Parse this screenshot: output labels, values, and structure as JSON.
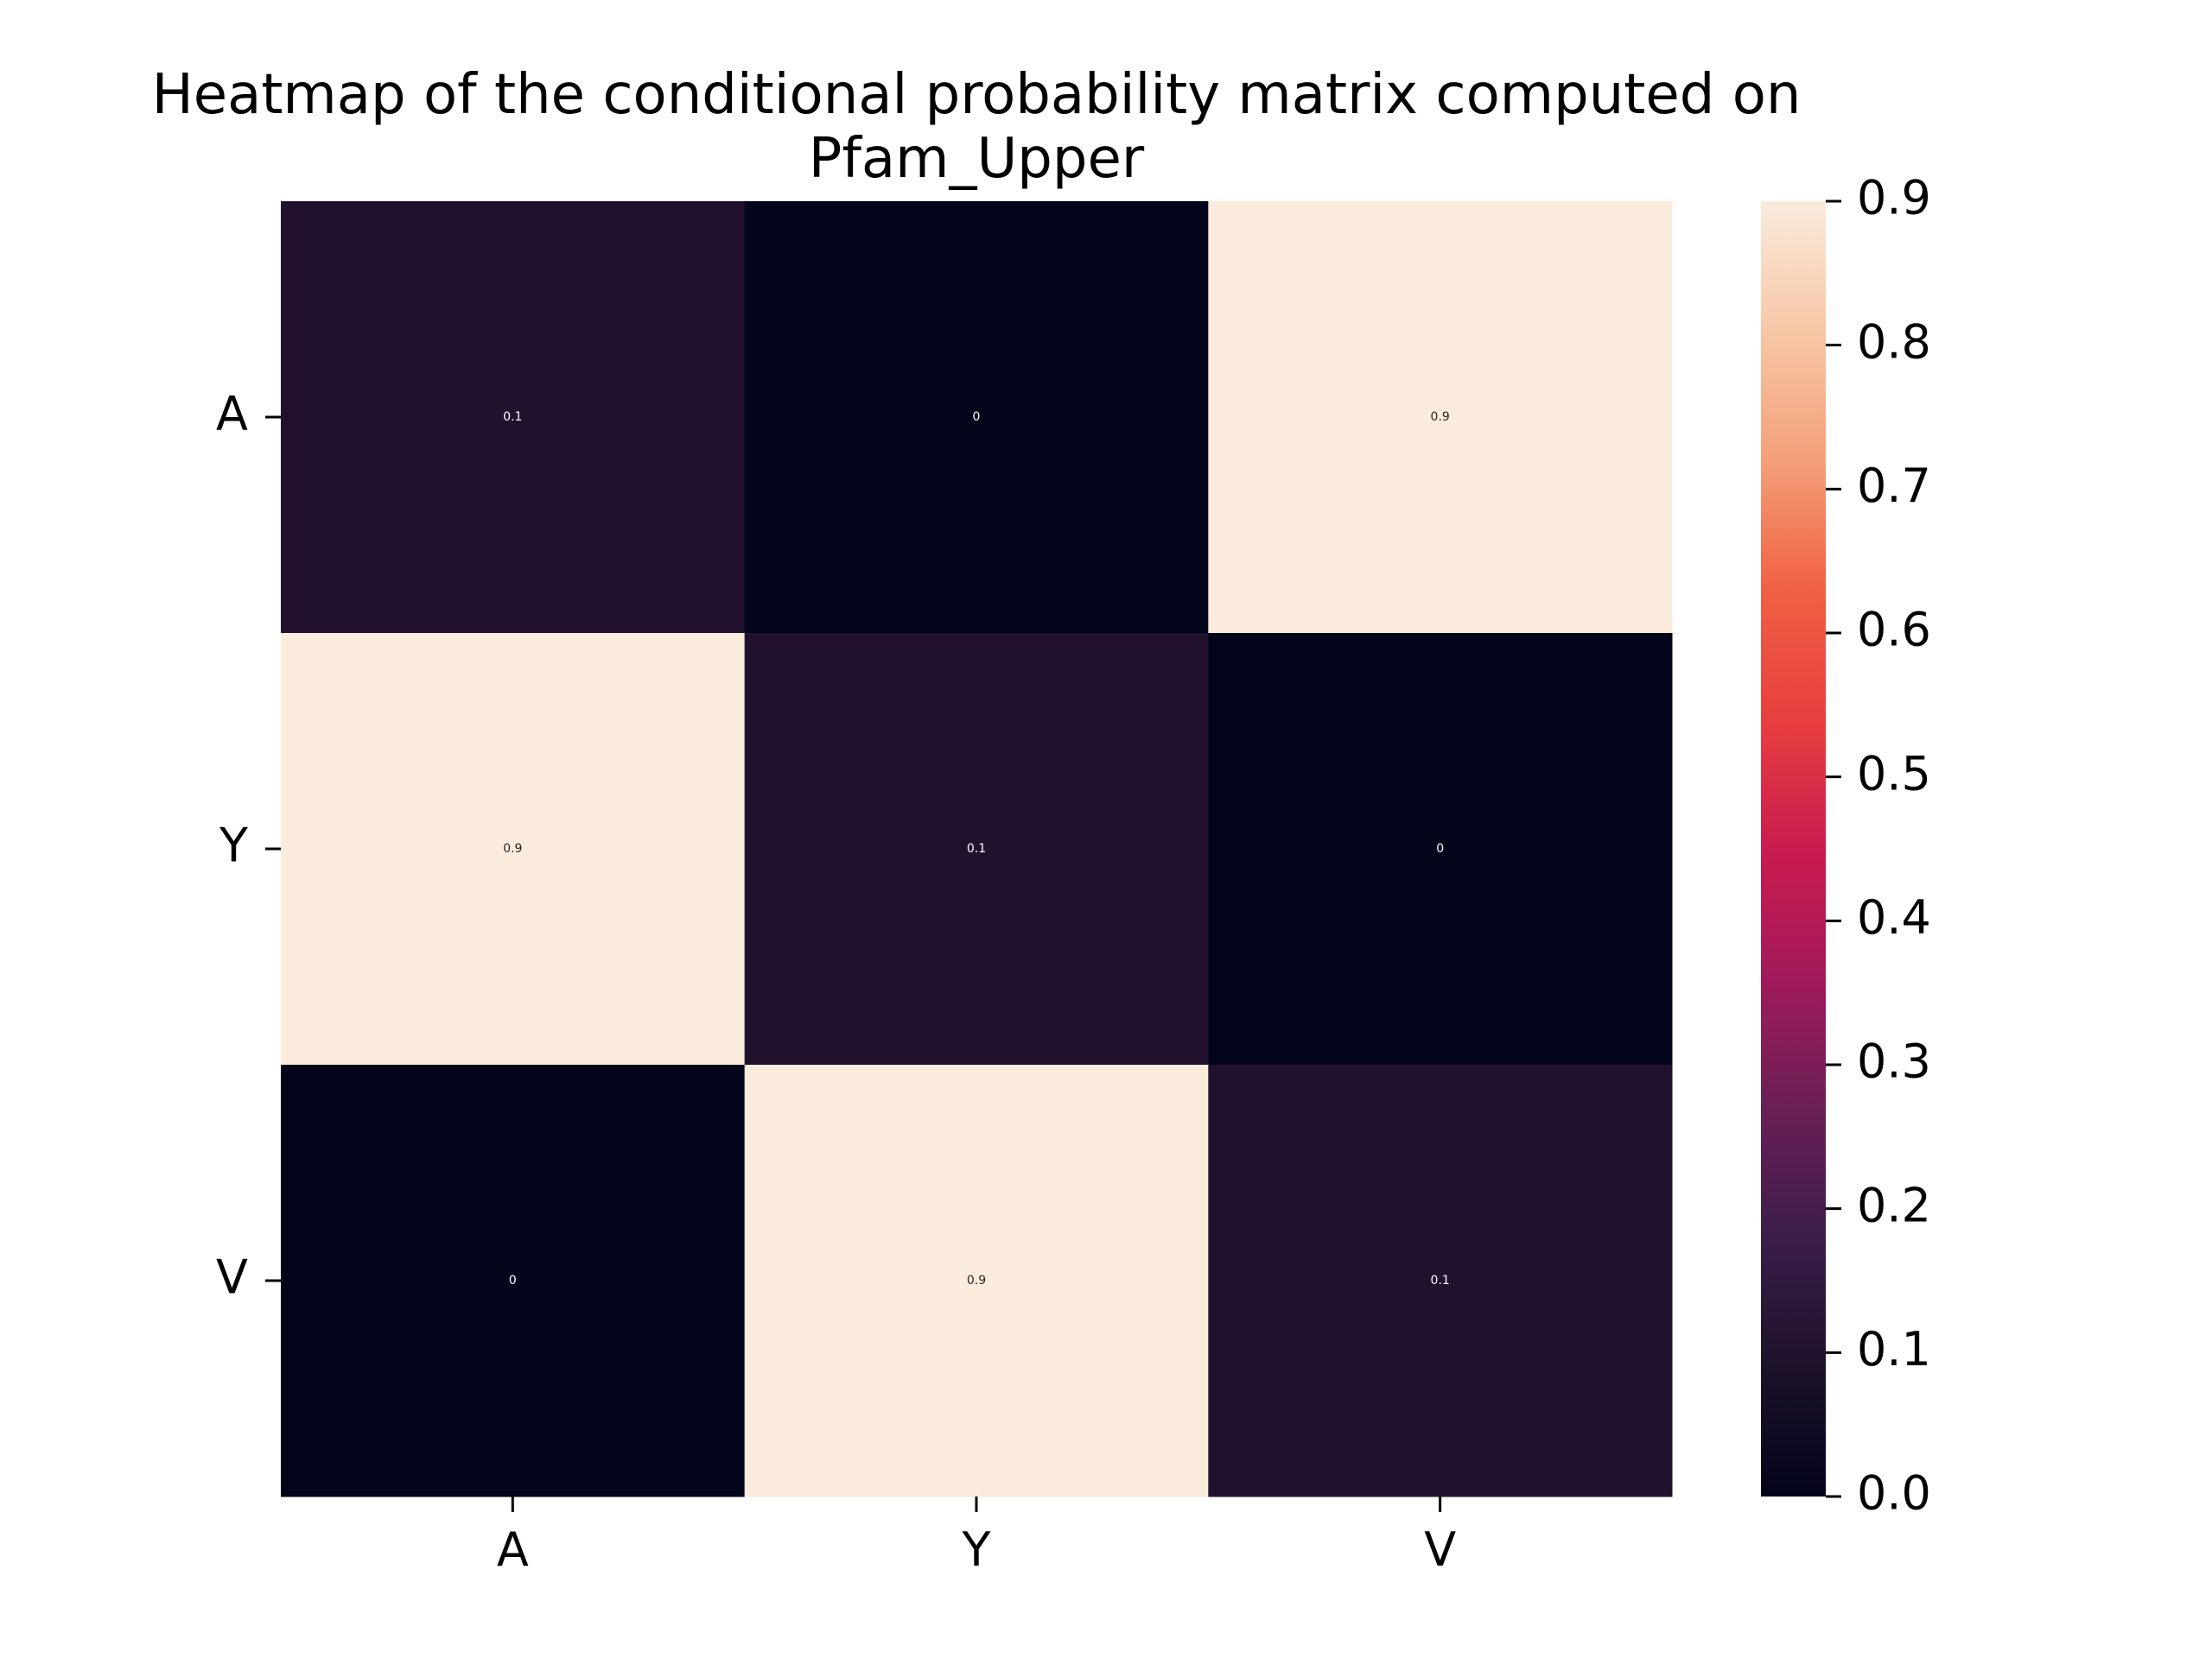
{
  "chart_data": {
    "type": "heatmap",
    "title_lines": [
      "Heatmap of the conditional probability matrix computed on",
      "Pfam_Upper"
    ],
    "row_labels": [
      "A",
      "Y",
      "V"
    ],
    "col_labels": [
      "A",
      "Y",
      "V"
    ],
    "values": [
      [
        0.1,
        0,
        0.9
      ],
      [
        0.9,
        0.1,
        0
      ],
      [
        0,
        0.9,
        0.1
      ]
    ],
    "annotations": [
      [
        "0.1",
        "0",
        "0.9"
      ],
      [
        "0.9",
        "0.1",
        "0"
      ],
      [
        "0",
        "0.9",
        "0.1"
      ]
    ],
    "xlabel": "",
    "ylabel": "",
    "colorbar": {
      "vmin": 0.0,
      "vmax": 0.9,
      "ticks": [
        0.0,
        0.1,
        0.2,
        0.3,
        0.4,
        0.5,
        0.6,
        0.7,
        0.8,
        0.9
      ],
      "tick_labels": [
        "0.0",
        "0.1",
        "0.2",
        "0.3",
        "0.4",
        "0.5",
        "0.6",
        "0.7",
        "0.8",
        "0.9"
      ],
      "colormap": "rocket"
    },
    "colors": {
      "low": "#03051a",
      "high": "#faebdd"
    }
  }
}
